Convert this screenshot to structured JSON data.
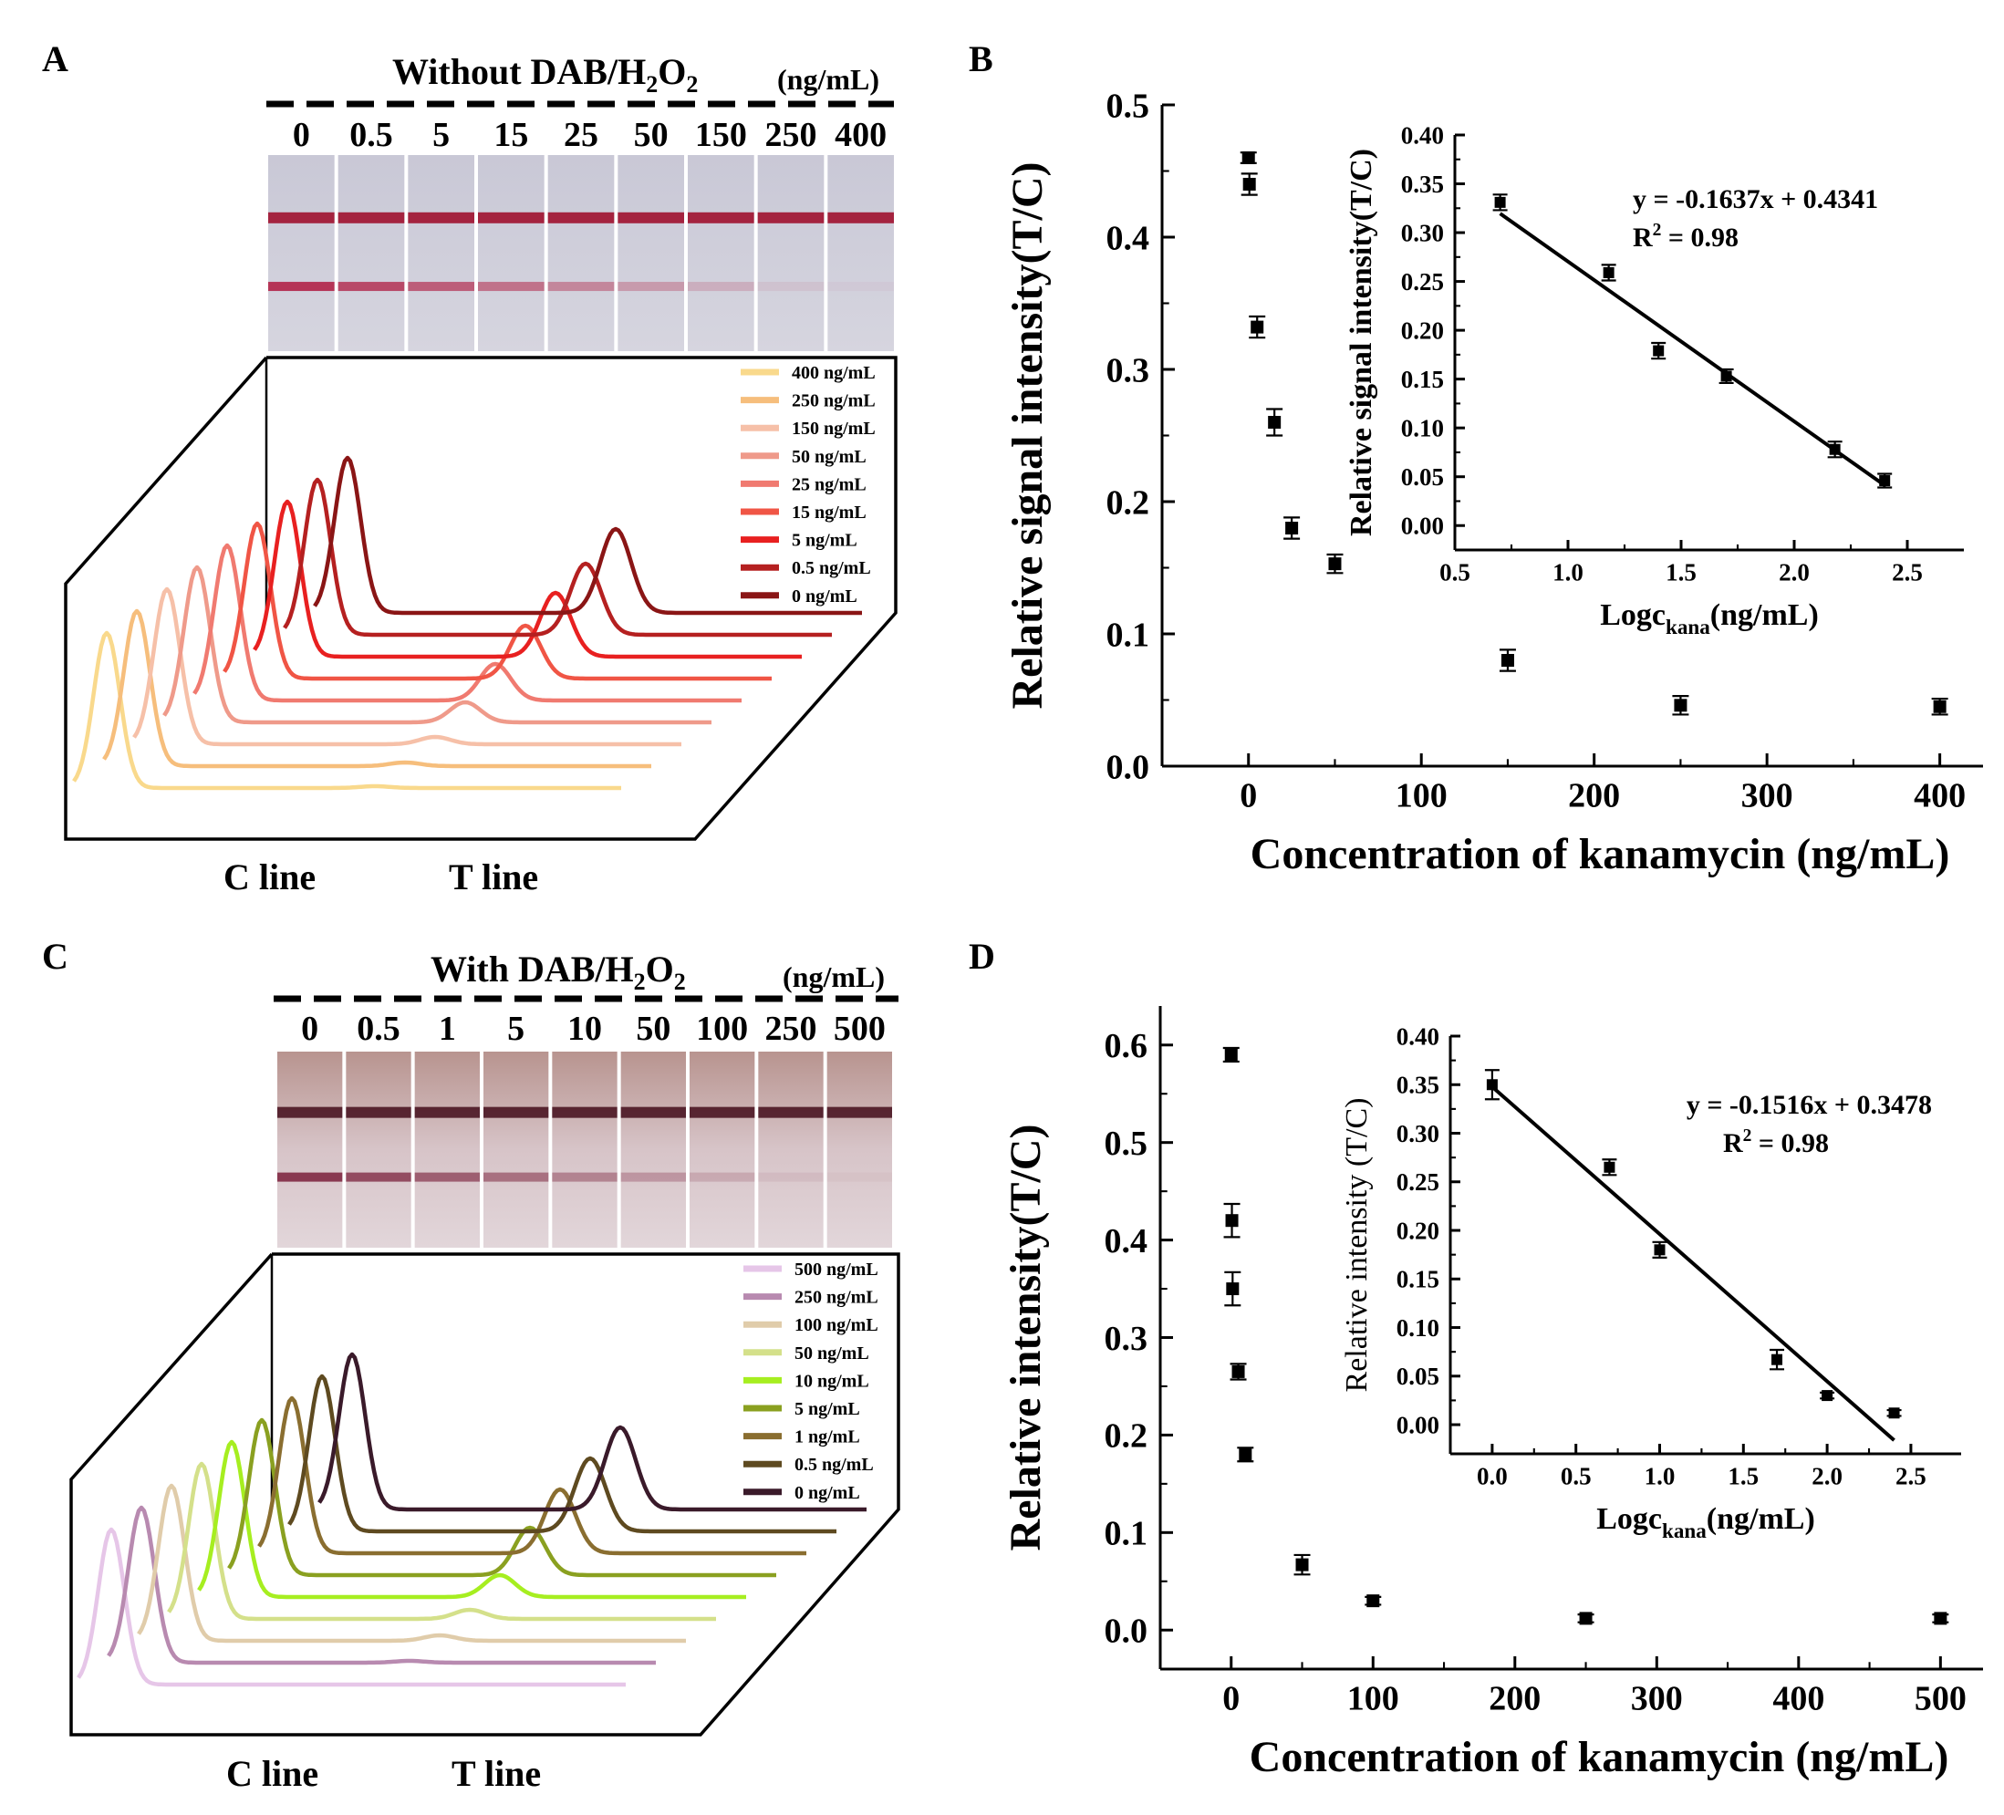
{
  "panels": {
    "A": {
      "label": "A",
      "header_pre": "Without DAB/H",
      "header_sub": "2",
      "header_mid": "O",
      "header_sub2": "2",
      "unit": "(ng/mL)",
      "strip_labels": [
        "0",
        "0.5",
        "5",
        "15",
        "25",
        "50",
        "150",
        "250",
        "400"
      ],
      "legend": [
        "400 ng/mL",
        "250 ng/mL",
        "150 ng/mL",
        "50   ng/mL",
        "25   ng/mL",
        "15   ng/mL",
        "5     ng/mL",
        "0.5  ng/mL",
        "0     ng/mL"
      ],
      "legend_colors": [
        "#f9d98c",
        "#f6be7c",
        "#f6c0a8",
        "#ef9a8a",
        "#f07a70",
        "#f05545",
        "#e82020",
        "#b52020",
        "#8a1515"
      ],
      "c_line_label": "C line",
      "t_line_label": "T line"
    },
    "C": {
      "label": "C",
      "header_pre": "With DAB/H",
      "header_sub": "2",
      "header_mid": "O",
      "header_sub2": "2",
      "unit": "(ng/mL)",
      "strip_labels": [
        "0",
        "0.5",
        "1",
        "5",
        "10",
        "50",
        "100",
        "250",
        "500"
      ],
      "legend": [
        "500 ng/mL",
        "250 ng/mL",
        "100 ng/mL",
        "50   ng/mL",
        "10   ng/mL",
        "5     ng/mL",
        "1     ng/mL",
        "0.5  ng/mL",
        "0     ng/mL"
      ],
      "legend_colors": [
        "#e6c6e8",
        "#b88ab0",
        "#e0ccaa",
        "#d4e08a",
        "#a6ee20",
        "#8aa020",
        "#8a6e30",
        "#5e4a20",
        "#3a1a2a"
      ],
      "c_line_label": "C line",
      "t_line_label": "T line"
    },
    "B": {
      "label": "B"
    },
    "D": {
      "label": "D"
    }
  },
  "chart_data": [
    {
      "id": "B-main",
      "type": "scatter",
      "title": "",
      "xlabel": "Concentration of kanamycin (ng/mL)",
      "ylabel": "Relative signal intensity(T/C)",
      "xlim": [
        -50,
        425
      ],
      "ylim": [
        0.0,
        0.5
      ],
      "xticks": [
        0,
        100,
        200,
        300,
        400
      ],
      "yticks": [
        0.0,
        0.1,
        0.2,
        0.3,
        0.4,
        0.5
      ],
      "ytick_labels": [
        "0.0",
        "0.1",
        "0.2",
        "0.3",
        "0.4",
        "0.5"
      ],
      "points": [
        {
          "x": 0,
          "y": 0.46,
          "err": 0.004
        },
        {
          "x": 0.5,
          "y": 0.44,
          "err": 0.008
        },
        {
          "x": 5,
          "y": 0.332,
          "err": 0.008
        },
        {
          "x": 15,
          "y": 0.26,
          "err": 0.01
        },
        {
          "x": 25,
          "y": 0.18,
          "err": 0.008
        },
        {
          "x": 50,
          "y": 0.153,
          "err": 0.007
        },
        {
          "x": 150,
          "y": 0.08,
          "err": 0.008
        },
        {
          "x": 250,
          "y": 0.046,
          "err": 0.007
        },
        {
          "x": 400,
          "y": 0.045,
          "err": 0.006
        }
      ]
    },
    {
      "id": "B-inset",
      "type": "scatter",
      "xlabel_pre": "Logc",
      "xlabel_sub": "kana",
      "xlabel_post": "(ng/mL)",
      "ylabel": "Relative signal intensity(T/C)",
      "xlim": [
        0.5,
        2.75
      ],
      "ylim": [
        -0.025,
        0.4
      ],
      "xticks": [
        0.5,
        1.0,
        1.5,
        2.0,
        2.5
      ],
      "xtick_labels": [
        "0.5",
        "1.0",
        "1.5",
        "2.0",
        "2.5"
      ],
      "yticks": [
        0.0,
        0.05,
        0.1,
        0.15,
        0.2,
        0.25,
        0.3,
        0.35,
        0.4
      ],
      "ytick_labels": [
        "0.00",
        "0.05",
        "0.10",
        "0.15",
        "0.20",
        "0.25",
        "0.30",
        "0.35",
        "0.40"
      ],
      "points": [
        {
          "x": 0.7,
          "y": 0.331,
          "err": 0.008
        },
        {
          "x": 1.18,
          "y": 0.259,
          "err": 0.008
        },
        {
          "x": 1.4,
          "y": 0.179,
          "err": 0.008
        },
        {
          "x": 1.7,
          "y": 0.153,
          "err": 0.007
        },
        {
          "x": 2.18,
          "y": 0.078,
          "err": 0.008
        },
        {
          "x": 2.4,
          "y": 0.046,
          "err": 0.007
        }
      ],
      "fit": {
        "slope": -0.1637,
        "intercept": 0.4341,
        "x_from": 0.7,
        "x_to": 2.4
      },
      "equation": "y = -0.1637x + 0.4341",
      "r2_pre": "R",
      "r2_sup": "2",
      "r2_post": " = 0.98"
    },
    {
      "id": "D-main",
      "type": "scatter",
      "xlabel": "Concentration of kanamycin (ng/mL)",
      "ylabel": "Relative intensity(T/C)",
      "xlim": [
        -50,
        530
      ],
      "ylim": [
        -0.04,
        0.64
      ],
      "xticks": [
        0,
        100,
        200,
        300,
        400,
        500
      ],
      "yticks": [
        0.0,
        0.1,
        0.2,
        0.3,
        0.4,
        0.5,
        0.6
      ],
      "ytick_labels": [
        "0.0",
        "0.1",
        "0.2",
        "0.3",
        "0.4",
        "0.5",
        "0.6"
      ],
      "points": [
        {
          "x": 0,
          "y": 0.59,
          "err": 0.007
        },
        {
          "x": 0.5,
          "y": 0.42,
          "err": 0.017
        },
        {
          "x": 1,
          "y": 0.35,
          "err": 0.017
        },
        {
          "x": 5,
          "y": 0.265,
          "err": 0.008
        },
        {
          "x": 10,
          "y": 0.18,
          "err": 0.007
        },
        {
          "x": 50,
          "y": 0.067,
          "err": 0.01
        },
        {
          "x": 100,
          "y": 0.03,
          "err": 0.004
        },
        {
          "x": 250,
          "y": 0.012,
          "err": 0.004
        },
        {
          "x": 500,
          "y": 0.012,
          "err": 0.004
        }
      ]
    },
    {
      "id": "D-inset",
      "type": "scatter",
      "xlabel_pre": "Logc",
      "xlabel_sub": "kana",
      "xlabel_post": "(ng/mL)",
      "ylabel": "Relative intensity (T/C)",
      "xlim": [
        -0.25,
        2.8
      ],
      "ylim": [
        -0.03,
        0.4
      ],
      "xticks": [
        0.0,
        0.5,
        1.0,
        1.5,
        2.0,
        2.5
      ],
      "xtick_labels": [
        "0.0",
        "0.5",
        "1.0",
        "1.5",
        "2.0",
        "2.5"
      ],
      "yticks": [
        0.0,
        0.05,
        0.1,
        0.15,
        0.2,
        0.25,
        0.3,
        0.35,
        0.4
      ],
      "ytick_labels": [
        "0.00",
        "0.05",
        "0.10",
        "0.15",
        "0.20",
        "0.25",
        "0.30",
        "0.35",
        "0.40"
      ],
      "points": [
        {
          "x": 0.0,
          "y": 0.35,
          "err": 0.015
        },
        {
          "x": 0.7,
          "y": 0.265,
          "err": 0.008
        },
        {
          "x": 1.0,
          "y": 0.18,
          "err": 0.008
        },
        {
          "x": 1.7,
          "y": 0.067,
          "err": 0.01
        },
        {
          "x": 2.0,
          "y": 0.03,
          "err": 0.003
        },
        {
          "x": 2.4,
          "y": 0.012,
          "err": 0.003
        }
      ],
      "fit": {
        "slope": -0.1516,
        "intercept": 0.3478,
        "x_from": 0.0,
        "x_to": 2.4
      },
      "equation": "y = -0.1516x + 0.3478",
      "r2_pre": "R",
      "r2_sup": "2",
      "r2_post": " = 0.98"
    }
  ]
}
